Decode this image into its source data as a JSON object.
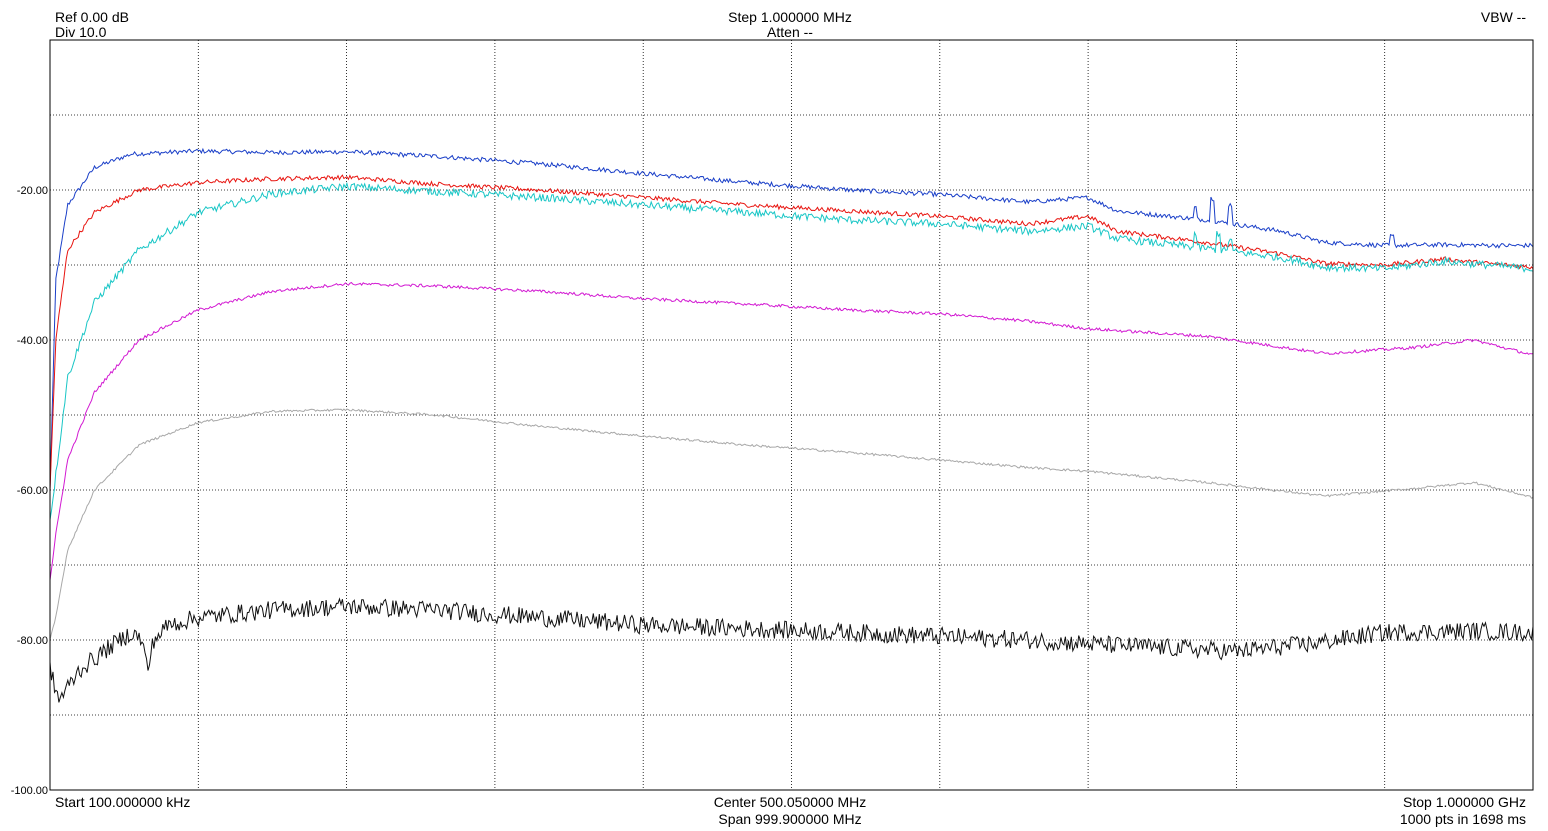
{
  "header": {
    "ref": "Ref 0.00 dB",
    "div": "Div 10.0",
    "step": "Step 1.000000 MHz",
    "atten": "Atten --",
    "vbw": "VBW --"
  },
  "footer": {
    "start": "Start 100.000000 kHz",
    "center": "Center 500.050000 MHz",
    "span": "Span 999.900000 MHz",
    "stop": "Stop 1.000000 GHz",
    "points": "1000 pts in 1698 ms"
  },
  "chart_data": {
    "type": "line",
    "title": "",
    "xlabel": "",
    "ylabel": "",
    "x_unit": "MHz",
    "xlim": [
      0.1,
      1000
    ],
    "ylim": [
      -100,
      0
    ],
    "y_tick_labels": [
      "-20.00",
      "-40.00",
      "-60.00",
      "-80.00",
      "-100.00"
    ],
    "y_tick_values": [
      -20,
      -40,
      -60,
      -80,
      -100
    ],
    "x_divisions": 10,
    "y_divisions": 10,
    "grid": true,
    "series": [
      {
        "color": "#1a3fc8",
        "noise": 0.3,
        "points": [
          [
            0.1,
            -60
          ],
          [
            4,
            -32
          ],
          [
            12,
            -22
          ],
          [
            30,
            -17
          ],
          [
            55,
            -15.2
          ],
          [
            100,
            -14.8
          ],
          [
            150,
            -15
          ],
          [
            200,
            -14.9
          ],
          [
            260,
            -15.5
          ],
          [
            330,
            -16.5
          ],
          [
            400,
            -17.8
          ],
          [
            470,
            -19
          ],
          [
            540,
            -20
          ],
          [
            600,
            -20.6
          ],
          [
            660,
            -21.6
          ],
          [
            700,
            -21
          ],
          [
            720,
            -22.8
          ],
          [
            780,
            -24
          ],
          [
            830,
            -25.5
          ],
          [
            860,
            -27
          ],
          [
            900,
            -27.4
          ],
          [
            940,
            -27.3
          ],
          [
            980,
            -27.4
          ],
          [
            1000,
            -27.4
          ]
        ],
        "spikes": [
          [
            772,
            -1.5
          ],
          [
            784,
            -3
          ],
          [
            796,
            -2.5
          ],
          [
            905,
            -1.2
          ]
        ]
      },
      {
        "color": "#e8140f",
        "noise": 0.3,
        "points": [
          [
            0.1,
            -60
          ],
          [
            4,
            -40
          ],
          [
            12,
            -28
          ],
          [
            30,
            -23
          ],
          [
            60,
            -20
          ],
          [
            100,
            -19
          ],
          [
            150,
            -18.5
          ],
          [
            200,
            -18.3
          ],
          [
            260,
            -19.2
          ],
          [
            330,
            -20
          ],
          [
            400,
            -21
          ],
          [
            470,
            -22
          ],
          [
            540,
            -22.8
          ],
          [
            600,
            -23.5
          ],
          [
            660,
            -24.5
          ],
          [
            700,
            -23.5
          ],
          [
            720,
            -25.5
          ],
          [
            780,
            -27
          ],
          [
            830,
            -28.5
          ],
          [
            860,
            -29.8
          ],
          [
            900,
            -30
          ],
          [
            940,
            -29.2
          ],
          [
            970,
            -29.8
          ],
          [
            1000,
            -30.3
          ]
        ],
        "spikes": []
      },
      {
        "color": "#19c6c6",
        "noise": 0.5,
        "points": [
          [
            0.1,
            -64
          ],
          [
            4,
            -58
          ],
          [
            12,
            -45
          ],
          [
            30,
            -35
          ],
          [
            60,
            -28
          ],
          [
            100,
            -23
          ],
          [
            150,
            -20.5
          ],
          [
            200,
            -19.5
          ],
          [
            260,
            -20.2
          ],
          [
            330,
            -21
          ],
          [
            400,
            -22
          ],
          [
            470,
            -23
          ],
          [
            540,
            -24
          ],
          [
            600,
            -24.5
          ],
          [
            660,
            -25.5
          ],
          [
            700,
            -24.8
          ],
          [
            720,
            -26.5
          ],
          [
            780,
            -27.8
          ],
          [
            830,
            -29
          ],
          [
            860,
            -30.3
          ],
          [
            900,
            -30.5
          ],
          [
            940,
            -29.5
          ],
          [
            970,
            -30
          ],
          [
            1000,
            -30.5
          ]
        ],
        "spikes": [
          [
            772,
            -1.8
          ],
          [
            788,
            -2.2
          ],
          [
            796,
            -1.5
          ]
        ]
      },
      {
        "color": "#d219d2",
        "noise": 0.2,
        "points": [
          [
            0.1,
            -72
          ],
          [
            4,
            -66
          ],
          [
            12,
            -56
          ],
          [
            30,
            -47
          ],
          [
            60,
            -40
          ],
          [
            100,
            -36
          ],
          [
            150,
            -33.5
          ],
          [
            200,
            -32.5
          ],
          [
            260,
            -32.8
          ],
          [
            330,
            -33.5
          ],
          [
            400,
            -34.5
          ],
          [
            470,
            -35.2
          ],
          [
            540,
            -36
          ],
          [
            600,
            -36.5
          ],
          [
            660,
            -37.5
          ],
          [
            700,
            -38.5
          ],
          [
            780,
            -39.5
          ],
          [
            860,
            -41.8
          ],
          [
            920,
            -41
          ],
          [
            960,
            -40
          ],
          [
            1000,
            -42
          ]
        ],
        "spikes": []
      },
      {
        "color": "#a8a8a8",
        "noise": 0.15,
        "points": [
          [
            0.1,
            -80
          ],
          [
            4,
            -77
          ],
          [
            12,
            -68
          ],
          [
            30,
            -60
          ],
          [
            60,
            -54
          ],
          [
            100,
            -51
          ],
          [
            150,
            -49.5
          ],
          [
            200,
            -49.3
          ],
          [
            260,
            -50
          ],
          [
            330,
            -51.5
          ],
          [
            400,
            -52.8
          ],
          [
            470,
            -54
          ],
          [
            540,
            -55
          ],
          [
            600,
            -56
          ],
          [
            660,
            -57
          ],
          [
            700,
            -57.5
          ],
          [
            780,
            -59
          ],
          [
            860,
            -60.8
          ],
          [
            920,
            -59.8
          ],
          [
            960,
            -59
          ],
          [
            1000,
            -61
          ]
        ],
        "spikes": []
      },
      {
        "color": "#101010",
        "noise": 1.2,
        "points": [
          [
            0.1,
            -84
          ],
          [
            6,
            -88
          ],
          [
            20,
            -84
          ],
          [
            40,
            -81
          ],
          [
            55,
            -79
          ],
          [
            62,
            -80
          ],
          [
            66,
            -84
          ],
          [
            70,
            -80
          ],
          [
            80,
            -78
          ],
          [
            100,
            -77
          ],
          [
            150,
            -76
          ],
          [
            200,
            -75.5
          ],
          [
            260,
            -76
          ],
          [
            330,
            -77
          ],
          [
            400,
            -78
          ],
          [
            470,
            -78.5
          ],
          [
            540,
            -79
          ],
          [
            600,
            -79.5
          ],
          [
            660,
            -80
          ],
          [
            700,
            -80.5
          ],
          [
            770,
            -81.2
          ],
          [
            800,
            -81.5
          ],
          [
            850,
            -80.5
          ],
          [
            900,
            -79
          ],
          [
            960,
            -78.8
          ],
          [
            1000,
            -79
          ]
        ],
        "spikes": []
      }
    ]
  }
}
